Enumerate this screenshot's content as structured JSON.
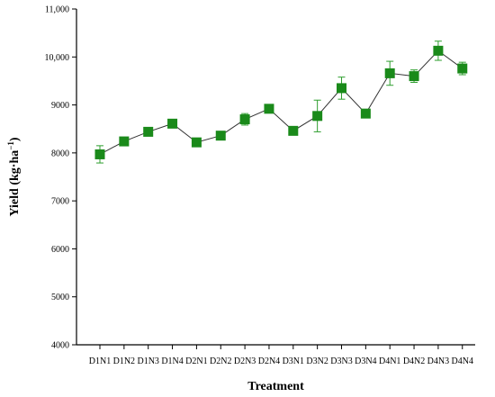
{
  "chart_data": {
    "type": "line",
    "title": "",
    "xlabel": "Treatment",
    "ylabel": "Yield (kg·ha",
    "ylabel_sup": "−1",
    "ylabel_close": ")",
    "ylim": [
      4000,
      11000
    ],
    "yticks": [
      4000,
      5000,
      6000,
      7000,
      8000,
      9000,
      10000,
      11000
    ],
    "ytick_labels": [
      "4000",
      "5000",
      "6000",
      "7000",
      "8000",
      "9000",
      "10,000",
      "11,000"
    ],
    "grid": false,
    "categories": [
      "D1N1",
      "D1N2",
      "D1N3",
      "D1N4",
      "D2N1",
      "D2N2",
      "D2N3",
      "D2N4",
      "D3N1",
      "D3N2",
      "D3N3",
      "D3N4",
      "D4N1",
      "D4N2",
      "D4N3",
      "D4N4"
    ],
    "series": [
      {
        "values": [
          7970,
          8240,
          8440,
          8610,
          8220,
          8360,
          8700,
          8920,
          8460,
          8770,
          9350,
          8820,
          9660,
          9600,
          10130,
          9760
        ],
        "error": [
          180,
          40,
          50,
          40,
          30,
          30,
          120,
          50,
          30,
          330,
          230,
          40,
          250,
          130,
          200,
          130
        ]
      }
    ],
    "colors": {
      "marker": "#1a8a1a",
      "error_bar": "#2e9e2e",
      "line": "#333333"
    }
  }
}
